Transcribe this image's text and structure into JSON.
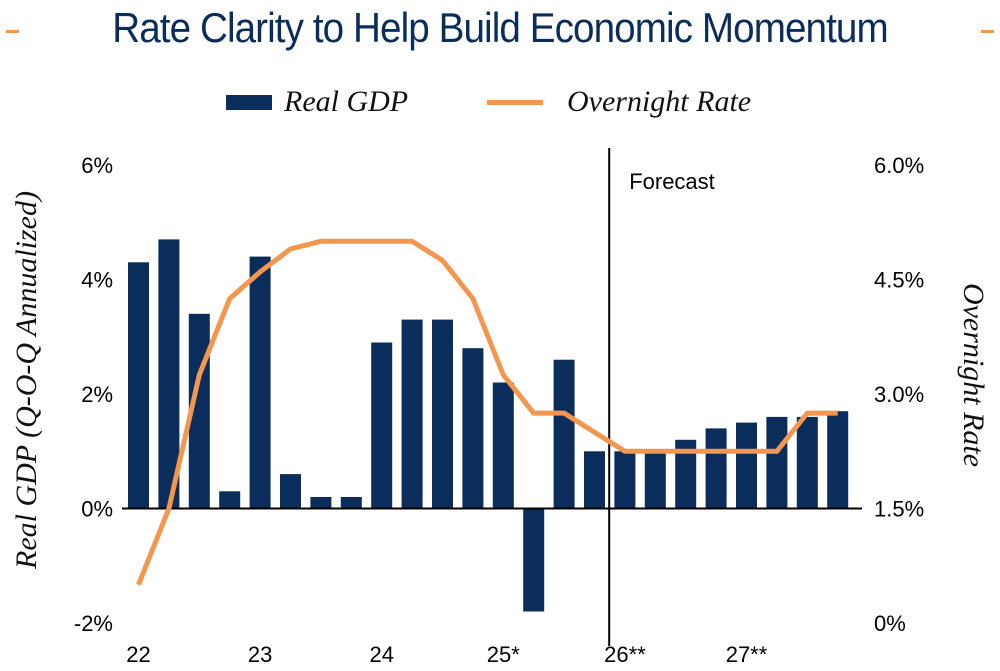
{
  "chart_data": {
    "type": "bar",
    "title": "Rate Clarity to Help Build Economic Momentum",
    "legend": [
      {
        "name": "Real GDP",
        "kind": "bar",
        "color": "#0B2D5B"
      },
      {
        "name": "Overnight Rate",
        "kind": "line",
        "color": "#F4964E"
      }
    ],
    "legend_position": "top-center",
    "x_tick_labels": [
      "22",
      "23",
      "24",
      "25*",
      "26**",
      "27**"
    ],
    "quarters_per_tick": 4,
    "ylabel": "Real GDP (Q-O-Q Annualized)",
    "ylabel_right": "Overnight Rate",
    "ylim": [
      -2,
      6
    ],
    "ylim_right": [
      0,
      6
    ],
    "y_ticks": [
      "6%",
      "4%",
      "2%",
      "0%",
      "-2%"
    ],
    "y_tick_values": [
      6,
      4,
      2,
      0,
      -2
    ],
    "y_ticks_right": [
      "6.0%",
      "4.5%",
      "3.0%",
      "1.5%",
      "0%"
    ],
    "y_tick_values_right": [
      6,
      4.5,
      3,
      1.5,
      0
    ],
    "annotation": "Forecast",
    "forecast_starts_at_index": 16,
    "series": [
      {
        "name": "Real GDP",
        "type": "bar",
        "axis": "left",
        "values": [
          4.3,
          4.7,
          3.4,
          0.3,
          4.4,
          0.6,
          0.2,
          0.2,
          2.9,
          3.3,
          3.3,
          2.8,
          2.2,
          -1.8,
          2.6,
          1.0,
          1.0,
          1.0,
          1.2,
          1.4,
          1.5,
          1.6,
          1.6,
          1.7
        ]
      },
      {
        "name": "Overnight Rate",
        "type": "line",
        "axis": "right",
        "values": [
          0.5,
          1.5,
          3.25,
          4.25,
          4.6,
          4.9,
          5.0,
          5.0,
          5.0,
          5.0,
          4.75,
          4.25,
          3.25,
          2.75,
          2.75,
          2.5,
          2.25,
          2.25,
          2.25,
          2.25,
          2.25,
          2.25,
          2.75,
          2.75
        ]
      }
    ],
    "grid": false
  }
}
